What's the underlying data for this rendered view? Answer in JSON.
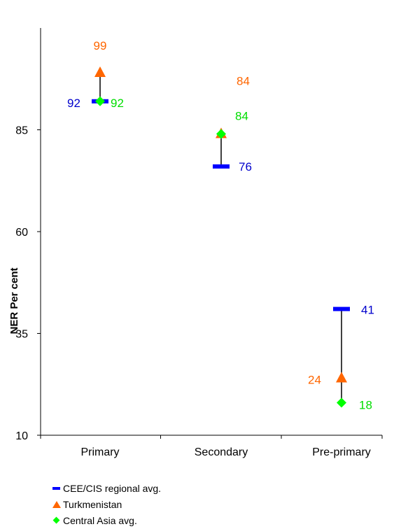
{
  "chart_data": {
    "type": "scatter",
    "ylabel": "NER Per cent",
    "y_ticks": [
      10,
      35,
      60,
      85
    ],
    "y_tick_labels": [
      "10",
      "35",
      "60",
      "85"
    ],
    "ylim": [
      10,
      110
    ],
    "grid": false,
    "legend_position": "bottom-left",
    "categories": [
      "Primary",
      "Secondary",
      "Pre-primary"
    ],
    "series": [
      {
        "name": "CEE/CIS regional avg.",
        "marker": "dash",
        "color": "#0000ff",
        "label_color": "#0000cc",
        "values": [
          92,
          76,
          41
        ],
        "labels": [
          "92",
          "76",
          "41"
        ]
      },
      {
        "name": "Turkmenistan",
        "marker": "triangle",
        "color": "#ff6600",
        "label_color": "#ff6600",
        "values": [
          99,
          84,
          24
        ],
        "labels": [
          "99",
          "84",
          "24"
        ]
      },
      {
        "name": "Central Asia avg.",
        "marker": "diamond",
        "color": "#00ff00",
        "label_color": "#00dd00",
        "values": [
          92,
          84,
          18
        ],
        "labels": [
          "92",
          "84",
          "18"
        ]
      }
    ]
  }
}
